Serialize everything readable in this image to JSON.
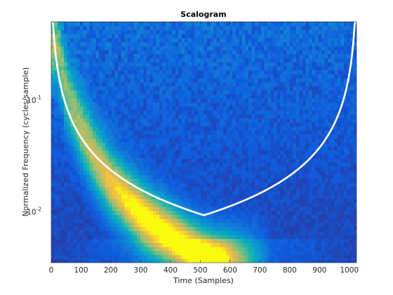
{
  "chart_data": {
    "type": "heatmap",
    "title": "Scalogram",
    "xlabel": "Time (Samples)",
    "ylabel": "Normalized Frequency (cycles/sample)",
    "xlim": [
      0,
      1024
    ],
    "ylim": [
      0.0035,
      0.5
    ],
    "yscale": "log",
    "x_ticks": [
      {
        "value": 0,
        "label": "0"
      },
      {
        "value": 100,
        "label": "100"
      },
      {
        "value": 200,
        "label": "200"
      },
      {
        "value": 300,
        "label": "300"
      },
      {
        "value": 400,
        "label": "400"
      },
      {
        "value": 500,
        "label": "500"
      },
      {
        "value": 600,
        "label": "600"
      },
      {
        "value": 700,
        "label": "700"
      },
      {
        "value": 800,
        "label": "800"
      },
      {
        "value": 900,
        "label": "900"
      },
      {
        "value": 1000,
        "label": "1000"
      }
    ],
    "y_ticks": [
      {
        "value": 0.01,
        "base": "10",
        "exp": "-2"
      },
      {
        "value": 0.1,
        "base": "10",
        "exp": "-1"
      }
    ],
    "chirp_ridge": {
      "description_points": [
        {
          "x": 20,
          "y": 0.3
        },
        {
          "x": 50,
          "y": 0.12
        },
        {
          "x": 100,
          "y": 0.055
        },
        {
          "x": 150,
          "y": 0.03
        },
        {
          "x": 200,
          "y": 0.018
        },
        {
          "x": 250,
          "y": 0.013
        },
        {
          "x": 300,
          "y": 0.0095
        },
        {
          "x": 350,
          "y": 0.0075
        },
        {
          "x": 400,
          "y": 0.0062
        },
        {
          "x": 450,
          "y": 0.005
        },
        {
          "x": 500,
          "y": 0.0042
        },
        {
          "x": 550,
          "y": 0.0037
        }
      ]
    },
    "cone_of_influence": {
      "color": "#ffffff",
      "center": 512,
      "min_freq": 0.0035
    },
    "colormap": "parula",
    "grid": false
  }
}
